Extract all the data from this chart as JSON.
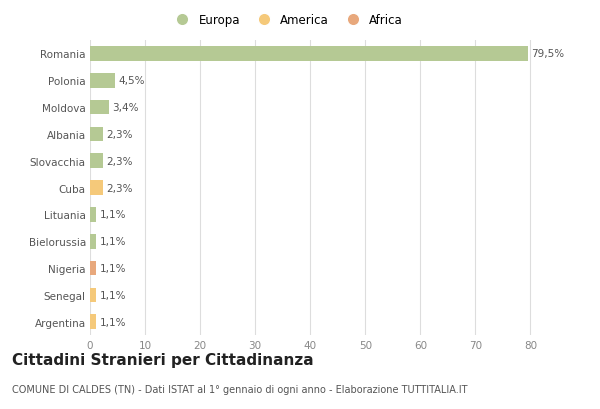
{
  "categories": [
    "Argentina",
    "Senegal",
    "Nigeria",
    "Bielorussia",
    "Lituania",
    "Cuba",
    "Slovacchia",
    "Albania",
    "Moldova",
    "Polonia",
    "Romania"
  ],
  "values": [
    1.1,
    1.1,
    1.1,
    1.1,
    1.1,
    2.3,
    2.3,
    2.3,
    3.4,
    4.5,
    79.5
  ],
  "labels": [
    "1,1%",
    "1,1%",
    "1,1%",
    "1,1%",
    "1,1%",
    "2,3%",
    "2,3%",
    "2,3%",
    "3,4%",
    "4,5%",
    "79,5%"
  ],
  "colors": [
    "#f5c97a",
    "#f5c97a",
    "#e8a87c",
    "#b5c994",
    "#b5c994",
    "#f5c97a",
    "#b5c994",
    "#b5c994",
    "#b5c994",
    "#b5c994",
    "#b5c994"
  ],
  "legend_labels": [
    "Europa",
    "America",
    "Africa"
  ],
  "legend_colors": [
    "#b5c994",
    "#f5c97a",
    "#e8a87c"
  ],
  "title": "Cittadini Stranieri per Cittadinanza",
  "subtitle": "COMUNE DI CALDES (TN) - Dati ISTAT al 1° gennaio di ogni anno - Elaborazione TUTTITALIA.IT",
  "xlabel_vals": [
    0,
    10,
    20,
    30,
    40,
    50,
    60,
    70,
    80
  ],
  "xlim": [
    0,
    85
  ],
  "bg_color": "#ffffff",
  "grid_color": "#dddddd",
  "title_fontsize": 11,
  "subtitle_fontsize": 7,
  "label_fontsize": 7.5,
  "tick_fontsize": 7.5,
  "legend_fontsize": 8.5
}
